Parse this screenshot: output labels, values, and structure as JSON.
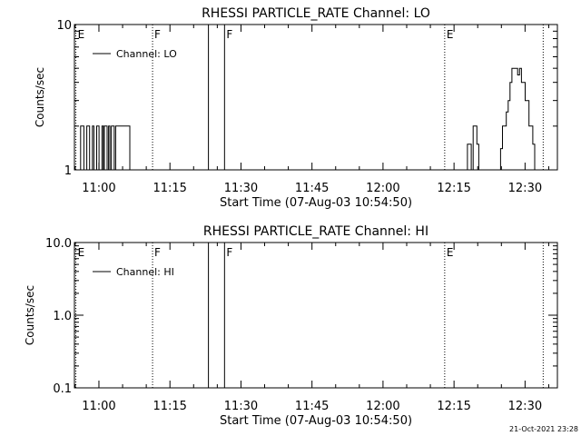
{
  "footer_timestamp": "21-Oct-2021 23:28",
  "chart_data": [
    {
      "type": "line",
      "title": "RHESSI PARTICLE_RATE Channel: LO",
      "xlabel": "Start Time (07-Aug-03 10:54:50)",
      "ylabel": "Counts/sec",
      "yscale": "log",
      "ylim": [
        1,
        10
      ],
      "y_tick_labels": [
        "1",
        "10"
      ],
      "x_tick_labels": [
        "11:00",
        "11:15",
        "11:30",
        "11:45",
        "12:00",
        "12:15",
        "12:30"
      ],
      "x_unit": "minutes since 10:54:50",
      "xlim": [
        0,
        102
      ],
      "legend": {
        "placement": "top-left",
        "entries": [
          "Channel: LO"
        ]
      },
      "markers": [
        {
          "label": "E",
          "x": 0.3,
          "style": "dotted"
        },
        {
          "label": "F",
          "x": 16.5,
          "style": "dotted"
        },
        {
          "label": "",
          "x": 28.3,
          "style": "solid"
        },
        {
          "label": "F",
          "x": 31.7,
          "style": "solid"
        },
        {
          "label": "E",
          "x": 78.2,
          "style": "dotted"
        },
        {
          "label": "",
          "x": 99.0,
          "style": "dotted"
        }
      ],
      "series": [
        {
          "name": "Channel: LO",
          "x": [
            0.3,
            1.0,
            1.3,
            1.6,
            2.0,
            2.4,
            2.6,
            2.9,
            3.2,
            3.5,
            3.8,
            4.1,
            4.4,
            4.7,
            5.0,
            5.2,
            5.5,
            5.8,
            6.1,
            6.3,
            6.6,
            6.9,
            7.2,
            7.5,
            7.8,
            8.1,
            8.4,
            8.7,
            9.0,
            9.3,
            9.6,
            10.0,
            10.4,
            10.8,
            11.3,
            11.7,
            12.0,
            82.0,
            82.6,
            83.0,
            83.4,
            83.8,
            84.2,
            84.6,
            85.0,
            85.4,
            85.8,
            86.2,
            86.6,
            87.0,
            87.6,
            88.0,
            88.5,
            89.0,
            89.5,
            90.0,
            90.4,
            90.8,
            91.2,
            91.6,
            92.0,
            92.4,
            92.8,
            93.2,
            93.6,
            94.0,
            94.4,
            94.8,
            95.2,
            95.6,
            96.0,
            96.4,
            96.8,
            97.2,
            97.6,
            98.0,
            98.4
          ],
          "y": [
            1,
            1,
            2,
            2,
            1,
            1,
            2,
            2,
            1,
            1,
            2,
            1,
            1,
            2,
            2,
            1,
            1,
            2,
            1,
            2,
            2,
            1,
            2,
            1,
            2,
            2,
            1,
            2,
            2,
            2,
            2,
            2,
            2,
            2,
            2,
            1,
            1,
            1,
            1,
            1.5,
            1.5,
            1,
            2,
            2,
            1.5,
            1,
            1,
            1,
            1,
            1,
            1,
            1,
            1,
            1,
            1,
            1.4,
            2,
            2,
            2.5,
            3,
            4,
            5,
            5,
            5,
            4.5,
            5,
            4,
            4,
            3,
            3,
            2,
            2,
            1.5,
            1,
            1,
            1,
            1
          ]
        }
      ]
    },
    {
      "type": "line",
      "title": "RHESSI PARTICLE_RATE Channel: HI",
      "xlabel": "Start Time (07-Aug-03 10:54:50)",
      "ylabel": "Counts/sec",
      "yscale": "log",
      "ylim": [
        0.1,
        10
      ],
      "y_tick_labels": [
        "0.1",
        "1.0",
        "10.0"
      ],
      "x_tick_labels": [
        "11:00",
        "11:15",
        "11:30",
        "11:45",
        "12:00",
        "12:15",
        "12:30"
      ],
      "x_unit": "minutes since 10:54:50",
      "xlim": [
        0,
        102
      ],
      "legend": {
        "placement": "top-left",
        "entries": [
          "Channel: HI"
        ]
      },
      "markers": [
        {
          "label": "E",
          "x": 0.3,
          "style": "dotted"
        },
        {
          "label": "F",
          "x": 16.5,
          "style": "dotted"
        },
        {
          "label": "",
          "x": 28.3,
          "style": "solid"
        },
        {
          "label": "F",
          "x": 31.7,
          "style": "solid"
        },
        {
          "label": "E",
          "x": 78.2,
          "style": "dotted"
        },
        {
          "label": "",
          "x": 99.0,
          "style": "dotted"
        }
      ],
      "series": [
        {
          "name": "Channel: HI",
          "x": [],
          "y": []
        }
      ]
    }
  ]
}
